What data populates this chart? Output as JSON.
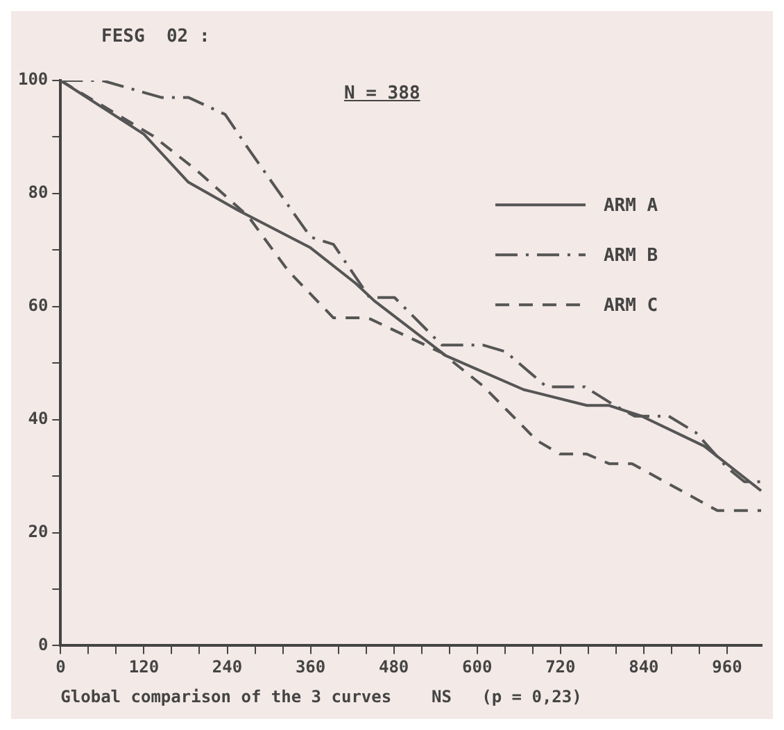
{
  "chart_data": {
    "type": "line",
    "title": "FESG  02 :",
    "xlabel": "Global comparison of the 3 curves    NS   (p = 0,23)",
    "annotations": [
      "N = 388"
    ],
    "xlim": [
      0,
      1010
    ],
    "ylim": [
      0,
      100
    ],
    "xticks": [
      0,
      {
        "value": 40,
        "label": null
      },
      {
        "value": 80,
        "label": null
      },
      120,
      {
        "value": 160,
        "label": null
      },
      {
        "value": 200,
        "label": null
      },
      240,
      {
        "value": 280,
        "label": null
      },
      {
        "value": 320,
        "label": null
      },
      360,
      {
        "value": 400,
        "label": null
      },
      {
        "value": 440,
        "label": null
      },
      480,
      {
        "value": 520,
        "label": null
      },
      {
        "value": 560,
        "label": null
      },
      600,
      {
        "value": 640,
        "label": null
      },
      {
        "value": 680,
        "label": null
      },
      720,
      {
        "value": 760,
        "label": null
      },
      {
        "value": 800,
        "label": null
      },
      840,
      {
        "value": 880,
        "label": null
      },
      {
        "value": 920,
        "label": null
      },
      960
    ],
    "yticks": [
      0,
      {
        "value": 10,
        "label": null
      },
      20,
      {
        "value": 30,
        "label": null
      },
      40,
      {
        "value": 50,
        "label": null
      },
      60,
      {
        "value": 70,
        "label": null
      },
      80,
      {
        "value": 90,
        "label": null
      },
      100
    ],
    "grid": false,
    "legend": "right",
    "marker": "none",
    "series": [
      {
        "name": "ARM A",
        "color": "#555555",
        "line_style": "solid",
        "x": [
          0,
          120,
          184,
          256,
          360,
          426,
          452,
          555,
          667,
          758,
          790,
          837,
          927,
          1009
        ],
        "values": [
          100,
          90.5,
          82,
          77,
          70.4,
          64,
          61,
          51.3,
          45.3,
          42.5,
          42.5,
          40.6,
          35.3,
          27.4
        ]
      },
      {
        "name": "ARM B",
        "color": "#555555",
        "line_style": "dashdot",
        "x": [
          0,
          60,
          145,
          184,
          237,
          270,
          360,
          393,
          445,
          458,
          481,
          549,
          608,
          641,
          700,
          755,
          798,
          827,
          876,
          915,
          960,
          985,
          1009
        ],
        "values": [
          100,
          100,
          97,
          97,
          94,
          88,
          72.3,
          71,
          61.6,
          61.6,
          61.6,
          53.2,
          53.2,
          52,
          45.8,
          45.8,
          42.5,
          40.6,
          40.6,
          37.7,
          31.5,
          29,
          29
        ]
      },
      {
        "name": "ARM C",
        "color": "#555555",
        "line_style": "dashed",
        "x": [
          0,
          35,
          133,
          197,
          270,
          328,
          393,
          438,
          446,
          477,
          549,
          608,
          686,
          719,
          758,
          790,
          823,
          946,
          1009
        ],
        "values": [
          100,
          97.4,
          90.2,
          84,
          76,
          66.3,
          58,
          58,
          57.8,
          56,
          51.8,
          46,
          36.3,
          33.9,
          33.9,
          32.2,
          32.2,
          23.9,
          23.9
        ]
      }
    ]
  }
}
